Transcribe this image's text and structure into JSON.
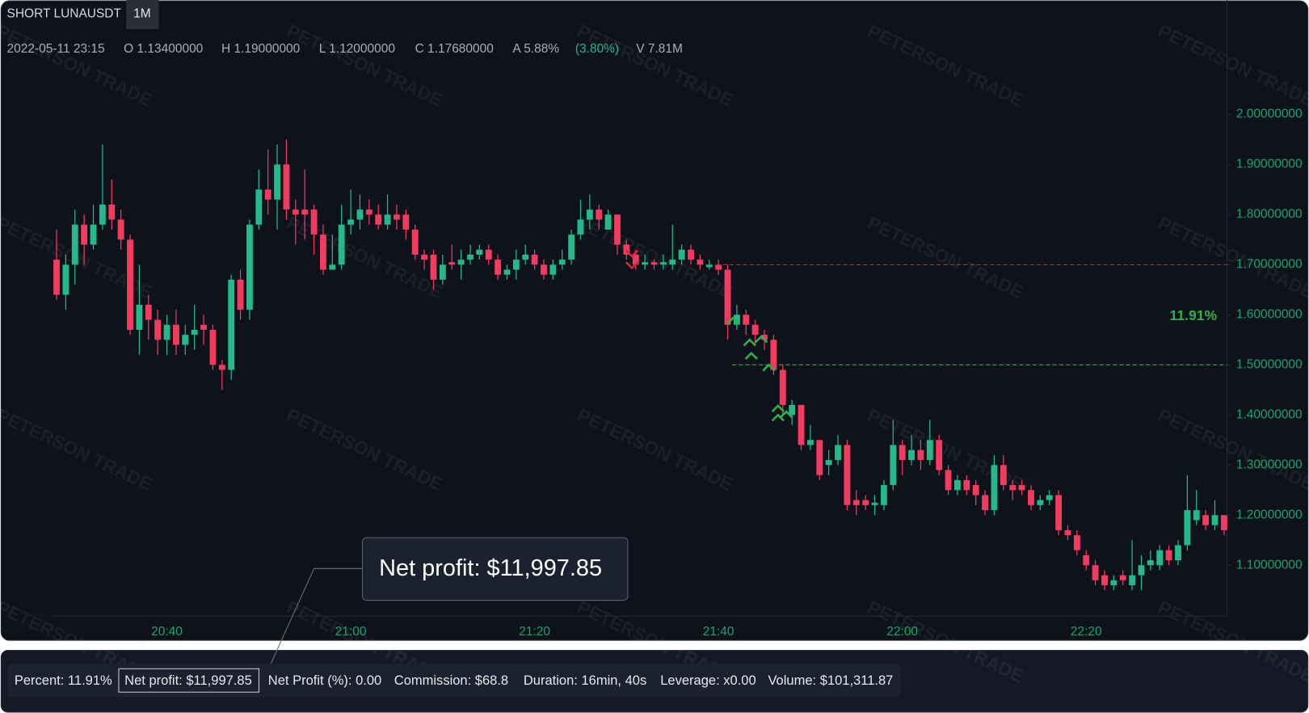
{
  "header": {
    "symbol": "SHORT LUNAUSDT",
    "interval": "1M"
  },
  "info": {
    "date": "2022-05-11 23:15",
    "open": "O 1.13400000",
    "high": "H 1.19000000",
    "low": "L 1.12000000",
    "close": "C 1.17680000",
    "amplitude": "A 5.88%",
    "change": "(3.80%)",
    "volume": "V 7.81M"
  },
  "watermark": "PETERSON TRADE",
  "tooltip": "Net profit: $11,997.85",
  "footer": {
    "stats": [
      "Percent: 11.91%",
      "Net profit: $11,997.85",
      "Net Profit (%): 0.00",
      "Commission: $68.8",
      "Duration: 16min, 40s",
      "Leverage: x0.00",
      "Volume: $101,311.87"
    ]
  },
  "chart_data": {
    "type": "candlestick",
    "up_color": "#23b98a",
    "down_color": "#f23b5f",
    "categories": [
      null,
      null,
      null,
      null,
      null,
      null,
      null,
      null,
      null,
      null,
      null,
      null,
      "20:40",
      null,
      null,
      null,
      null,
      null,
      null,
      null,
      null,
      null,
      null,
      null,
      null,
      null,
      null,
      null,
      null,
      null,
      null,
      null,
      "21:00",
      null,
      null,
      null,
      null,
      null,
      null,
      null,
      null,
      null,
      null,
      null,
      null,
      null,
      null,
      null,
      null,
      null,
      null,
      null,
      "21:20",
      null,
      null,
      null,
      null,
      null,
      null,
      null,
      null,
      null,
      null,
      null,
      null,
      null,
      null,
      null,
      null,
      null,
      null,
      null,
      "21:40",
      null,
      null,
      null,
      null,
      null,
      null,
      null,
      null,
      null,
      null,
      null,
      null,
      null,
      null,
      null,
      null,
      null,
      null,
      null,
      "22:00",
      null,
      null,
      null,
      null,
      null,
      null,
      null,
      null,
      null,
      null,
      null,
      null,
      null,
      null,
      null,
      null,
      null,
      null,
      null,
      "22:20",
      null,
      null,
      null,
      null,
      null,
      null,
      null,
      null,
      null,
      null,
      null,
      null,
      null,
      null,
      null
    ],
    "open": [
      1.71,
      1.64,
      1.7,
      1.78,
      1.74,
      1.78,
      1.82,
      1.79,
      1.75,
      1.57,
      1.62,
      1.59,
      1.55,
      1.58,
      1.54,
      1.56,
      1.58,
      1.57,
      1.5,
      1.49,
      1.67,
      1.61,
      1.78,
      1.85,
      1.83,
      1.9,
      1.81,
      1.81,
      1.81,
      1.76,
      1.69,
      1.7,
      1.78,
      1.79,
      1.81,
      1.8,
      1.78,
      1.8,
      1.8,
      1.77,
      1.72,
      1.72,
      1.67,
      1.705,
      1.7,
      1.71,
      1.72,
      1.73,
      1.71,
      1.68,
      1.69,
      1.71,
      1.72,
      1.7,
      1.68,
      1.7,
      1.71,
      1.76,
      1.79,
      1.81,
      1.77,
      1.8,
      1.74,
      1.72,
      1.7,
      1.705,
      1.7,
      1.7,
      1.71,
      1.73,
      1.71,
      1.695,
      1.7,
      1.69,
      1.58,
      1.6,
      1.58,
      1.56,
      1.55,
      1.49,
      1.4,
      1.42,
      1.34,
      1.35,
      1.3,
      1.31,
      1.34,
      1.23,
      1.23,
      1.22,
      1.22,
      1.26,
      1.34,
      1.31,
      1.33,
      1.31,
      1.35,
      1.29,
      1.25,
      1.27,
      1.26,
      1.24,
      1.21,
      1.3,
      1.26,
      1.26,
      1.25,
      1.22,
      1.23,
      1.24,
      1.17,
      1.16,
      1.12,
      1.1,
      1.08,
      1.06,
      1.08,
      1.06,
      1.08,
      1.1,
      1.1,
      1.13,
      1.11,
      1.14,
      1.19,
      1.2,
      1.18,
      1.2
    ],
    "high": [
      1.77,
      1.72,
      1.81,
      1.8,
      1.82,
      1.94,
      1.87,
      1.81,
      1.76,
      1.7,
      1.64,
      1.61,
      1.6,
      1.61,
      1.58,
      1.62,
      1.6,
      1.58,
      1.51,
      1.68,
      1.69,
      1.79,
      1.89,
      1.93,
      1.94,
      1.95,
      1.83,
      1.89,
      1.82,
      1.78,
      1.76,
      1.82,
      1.85,
      1.84,
      1.83,
      1.82,
      1.84,
      1.82,
      1.81,
      1.78,
      1.73,
      1.73,
      1.72,
      1.74,
      1.73,
      1.74,
      1.74,
      1.74,
      1.72,
      1.7,
      1.73,
      1.74,
      1.73,
      1.71,
      1.71,
      1.73,
      1.77,
      1.83,
      1.84,
      1.82,
      1.81,
      1.8,
      1.75,
      1.73,
      1.72,
      1.71,
      1.72,
      1.78,
      1.74,
      1.74,
      1.72,
      1.71,
      1.71,
      1.7,
      1.62,
      1.61,
      1.59,
      1.57,
      1.56,
      1.5,
      1.43,
      1.42,
      1.38,
      1.35,
      1.33,
      1.36,
      1.35,
      1.25,
      1.24,
      1.24,
      1.27,
      1.39,
      1.35,
      1.36,
      1.35,
      1.39,
      1.36,
      1.3,
      1.28,
      1.28,
      1.27,
      1.25,
      1.32,
      1.32,
      1.27,
      1.27,
      1.26,
      1.24,
      1.25,
      1.25,
      1.18,
      1.17,
      1.13,
      1.11,
      1.09,
      1.08,
      1.09,
      1.15,
      1.12,
      1.13,
      1.14,
      1.14,
      1.15,
      1.28,
      1.25,
      1.21,
      1.23,
      1.2
    ],
    "low": [
      1.63,
      1.61,
      1.66,
      1.7,
      1.73,
      1.77,
      1.77,
      1.73,
      1.56,
      1.52,
      1.55,
      1.52,
      1.52,
      1.52,
      1.52,
      1.53,
      1.54,
      1.49,
      1.45,
      1.47,
      1.59,
      1.59,
      1.77,
      1.8,
      1.77,
      1.79,
      1.74,
      1.75,
      1.72,
      1.68,
      1.69,
      1.69,
      1.76,
      1.77,
      1.78,
      1.77,
      1.77,
      1.77,
      1.75,
      1.71,
      1.69,
      1.65,
      1.66,
      1.69,
      1.67,
      1.7,
      1.71,
      1.7,
      1.67,
      1.67,
      1.67,
      1.7,
      1.69,
      1.67,
      1.67,
      1.69,
      1.7,
      1.75,
      1.77,
      1.77,
      1.77,
      1.72,
      1.71,
      1.69,
      1.69,
      1.69,
      1.69,
      1.69,
      1.7,
      1.7,
      1.69,
      1.69,
      1.68,
      1.55,
      1.57,
      1.56,
      1.54,
      1.53,
      1.48,
      1.4,
      1.38,
      1.33,
      1.33,
      1.27,
      1.28,
      1.3,
      1.21,
      1.2,
      1.21,
      1.2,
      1.21,
      1.25,
      1.28,
      1.3,
      1.29,
      1.3,
      1.28,
      1.24,
      1.24,
      1.24,
      1.22,
      1.2,
      1.2,
      1.25,
      1.23,
      1.24,
      1.21,
      1.21,
      1.22,
      1.16,
      1.15,
      1.12,
      1.09,
      1.06,
      1.05,
      1.05,
      1.06,
      1.05,
      1.05,
      1.09,
      1.09,
      1.1,
      1.1,
      1.13,
      1.18,
      1.17,
      1.17,
      1.16
    ],
    "close": [
      1.64,
      1.7,
      1.78,
      1.74,
      1.78,
      1.82,
      1.79,
      1.75,
      1.57,
      1.62,
      1.59,
      1.55,
      1.58,
      1.54,
      1.56,
      1.57,
      1.57,
      1.5,
      1.49,
      1.67,
      1.61,
      1.78,
      1.85,
      1.83,
      1.9,
      1.81,
      1.8,
      1.8,
      1.76,
      1.69,
      1.7,
      1.78,
      1.79,
      1.81,
      1.8,
      1.78,
      1.8,
      1.79,
      1.77,
      1.72,
      1.71,
      1.67,
      1.7,
      1.7,
      1.71,
      1.72,
      1.73,
      1.71,
      1.68,
      1.69,
      1.71,
      1.72,
      1.7,
      1.68,
      1.7,
      1.71,
      1.76,
      1.79,
      1.81,
      1.79,
      1.8,
      1.74,
      1.72,
      1.7,
      1.705,
      1.7,
      1.705,
      1.71,
      1.73,
      1.71,
      1.7,
      1.7,
      1.69,
      1.58,
      1.6,
      1.58,
      1.56,
      1.55,
      1.49,
      1.42,
      1.42,
      1.34,
      1.35,
      1.28,
      1.31,
      1.34,
      1.22,
      1.22,
      1.22,
      1.225,
      1.26,
      1.34,
      1.31,
      1.33,
      1.31,
      1.35,
      1.29,
      1.25,
      1.27,
      1.25,
      1.24,
      1.21,
      1.3,
      1.26,
      1.25,
      1.25,
      1.22,
      1.23,
      1.24,
      1.17,
      1.16,
      1.13,
      1.1,
      1.07,
      1.06,
      1.07,
      1.07,
      1.08,
      1.1,
      1.11,
      1.13,
      1.11,
      1.14,
      1.21,
      1.21,
      1.18,
      1.2,
      1.17
    ],
    "ylim": [
      1.0,
      2.1
    ],
    "yticks": [
      {
        "value": 1.1,
        "label": "1.10000000"
      },
      {
        "value": 1.2,
        "label": "1.20000000"
      },
      {
        "value": 1.3,
        "label": "1.30000000"
      },
      {
        "value": 1.4,
        "label": "1.40000000"
      },
      {
        "value": 1.5,
        "label": "1.50000000"
      },
      {
        "value": 1.6,
        "label": "1.60000000"
      },
      {
        "value": 1.7,
        "label": "1.70000000"
      },
      {
        "value": 1.8,
        "label": "1.80000000"
      },
      {
        "value": 1.9,
        "label": "1.90000000"
      },
      {
        "value": 2.0,
        "label": "2.00000000"
      }
    ],
    "grid": false,
    "entry_price": 1.7,
    "entry_color": "#c0303f",
    "target_price": 1.5,
    "target_color": "#2fb14a",
    "profit_label": "11.91%"
  }
}
